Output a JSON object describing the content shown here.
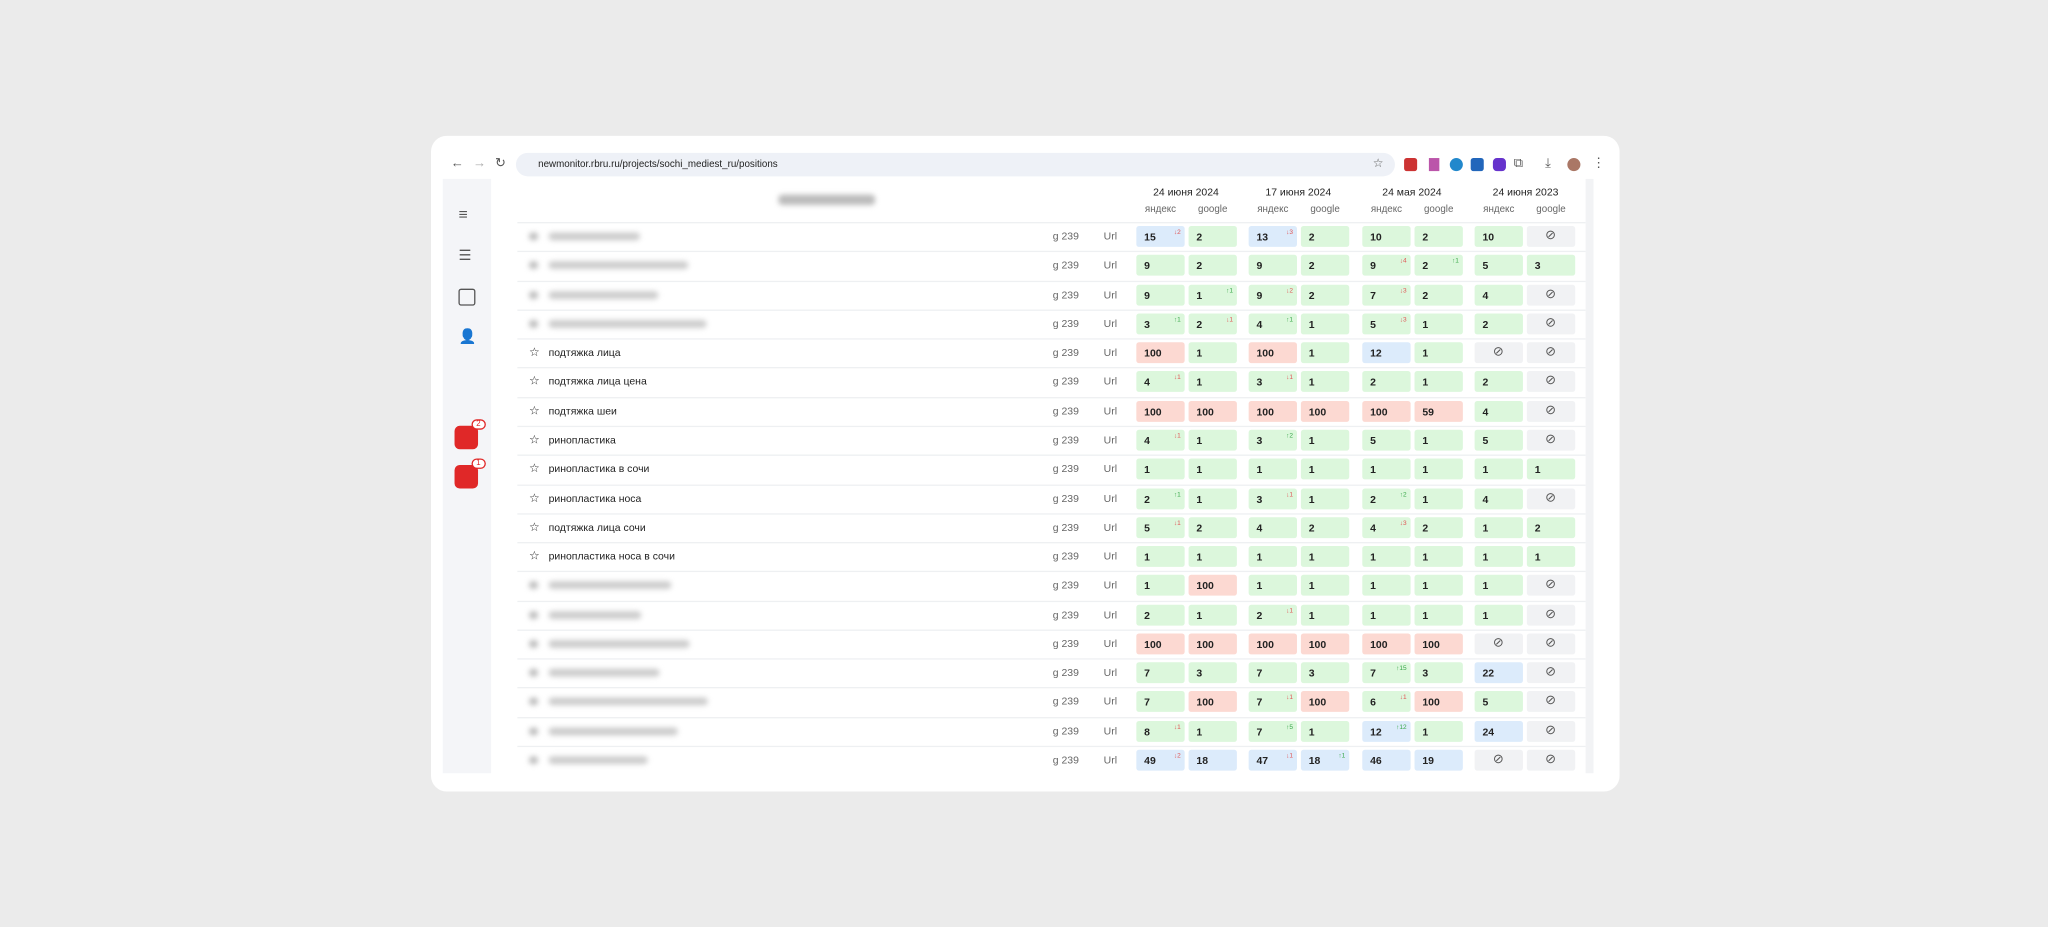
{
  "browser": {
    "url": "newmonitor.rbru.ru/projects/sochi_mediest_ru/positions"
  },
  "sidebar": {
    "badges": [
      "2",
      "1"
    ]
  },
  "table": {
    "dates": [
      "24 июня 2024",
      "17 июня 2024",
      "24 мая 2024",
      "24 июня 2023"
    ],
    "engines": [
      "яндекс",
      "google"
    ],
    "rows": [
      {
        "keyword": null,
        "region": "g 239",
        "url": "Url",
        "cells": [
          {
            "value": "15",
            "delta": "↓2",
            "status": "blue"
          },
          {
            "value": "2",
            "status": "green"
          },
          {
            "value": "13",
            "delta": "↓3",
            "status": "blue"
          },
          {
            "value": "2",
            "status": "green"
          },
          {
            "value": "10",
            "status": "green"
          },
          {
            "value": "2",
            "status": "green"
          },
          {
            "value": "10",
            "status": "green"
          },
          {
            "value": null,
            "status": "empty"
          }
        ]
      },
      {
        "keyword": null,
        "region": "g 239",
        "url": "Url",
        "cells": [
          {
            "value": "9",
            "status": "green"
          },
          {
            "value": "2",
            "status": "green"
          },
          {
            "value": "9",
            "status": "green"
          },
          {
            "value": "2",
            "status": "green"
          },
          {
            "value": "9",
            "delta": "↓4",
            "status": "green"
          },
          {
            "value": "2",
            "delta": "↑1",
            "status": "green"
          },
          {
            "value": "5",
            "status": "green"
          },
          {
            "value": "3",
            "status": "green"
          }
        ]
      },
      {
        "keyword": null,
        "region": "g 239",
        "url": "Url",
        "cells": [
          {
            "value": "9",
            "status": "green"
          },
          {
            "value": "1",
            "delta": "↑1",
            "status": "green"
          },
          {
            "value": "9",
            "delta": "↓2",
            "status": "green"
          },
          {
            "value": "2",
            "status": "green"
          },
          {
            "value": "7",
            "delta": "↓3",
            "status": "green"
          },
          {
            "value": "2",
            "status": "green"
          },
          {
            "value": "4",
            "status": "green"
          },
          {
            "value": null,
            "status": "empty"
          }
        ]
      },
      {
        "keyword": null,
        "region": "g 239",
        "url": "Url",
        "cells": [
          {
            "value": "3",
            "delta": "↑1",
            "status": "green"
          },
          {
            "value": "2",
            "delta": "↓1",
            "status": "green"
          },
          {
            "value": "4",
            "delta": "↑1",
            "status": "green"
          },
          {
            "value": "1",
            "status": "green"
          },
          {
            "value": "5",
            "delta": "↓3",
            "status": "green"
          },
          {
            "value": "1",
            "status": "green"
          },
          {
            "value": "2",
            "status": "green"
          },
          {
            "value": null,
            "status": "empty"
          }
        ]
      },
      {
        "keyword": "подтяжка лица",
        "region": "g 239",
        "url": "Url",
        "cells": [
          {
            "value": "100",
            "status": "red"
          },
          {
            "value": "1",
            "status": "green"
          },
          {
            "value": "100",
            "status": "red"
          },
          {
            "value": "1",
            "status": "green"
          },
          {
            "value": "12",
            "status": "blue"
          },
          {
            "value": "1",
            "status": "green"
          },
          {
            "value": null,
            "status": "empty"
          },
          {
            "value": null,
            "status": "empty"
          }
        ]
      },
      {
        "keyword": "подтяжка лица цена",
        "region": "g 239",
        "url": "Url",
        "cells": [
          {
            "value": "4",
            "delta": "↓1",
            "status": "green"
          },
          {
            "value": "1",
            "status": "green"
          },
          {
            "value": "3",
            "delta": "↓1",
            "status": "green"
          },
          {
            "value": "1",
            "status": "green"
          },
          {
            "value": "2",
            "status": "green"
          },
          {
            "value": "1",
            "status": "green"
          },
          {
            "value": "2",
            "status": "green"
          },
          {
            "value": null,
            "status": "empty"
          }
        ]
      },
      {
        "keyword": "подтяжка шеи",
        "region": "g 239",
        "url": "Url",
        "cells": [
          {
            "value": "100",
            "status": "red"
          },
          {
            "value": "100",
            "status": "red"
          },
          {
            "value": "100",
            "status": "red"
          },
          {
            "value": "100",
            "status": "red"
          },
          {
            "value": "100",
            "status": "red"
          },
          {
            "value": "59",
            "status": "red"
          },
          {
            "value": "4",
            "status": "green"
          },
          {
            "value": null,
            "status": "empty"
          }
        ]
      },
      {
        "keyword": "ринопластика",
        "region": "g 239",
        "url": "Url",
        "cells": [
          {
            "value": "4",
            "delta": "↓1",
            "status": "green"
          },
          {
            "value": "1",
            "status": "green"
          },
          {
            "value": "3",
            "delta": "↑2",
            "status": "green"
          },
          {
            "value": "1",
            "status": "green"
          },
          {
            "value": "5",
            "status": "green"
          },
          {
            "value": "1",
            "status": "green"
          },
          {
            "value": "5",
            "status": "green"
          },
          {
            "value": null,
            "status": "empty"
          }
        ]
      },
      {
        "keyword": "ринопластика в сочи",
        "region": "g 239",
        "url": "Url",
        "cells": [
          {
            "value": "1",
            "status": "green"
          },
          {
            "value": "1",
            "status": "green"
          },
          {
            "value": "1",
            "status": "green"
          },
          {
            "value": "1",
            "status": "green"
          },
          {
            "value": "1",
            "status": "green"
          },
          {
            "value": "1",
            "status": "green"
          },
          {
            "value": "1",
            "status": "green"
          },
          {
            "value": "1",
            "status": "green"
          }
        ]
      },
      {
        "keyword": "ринопластика носа",
        "region": "g 239",
        "url": "Url",
        "cells": [
          {
            "value": "2",
            "delta": "↑1",
            "status": "green"
          },
          {
            "value": "1",
            "status": "green"
          },
          {
            "value": "3",
            "delta": "↓1",
            "status": "green"
          },
          {
            "value": "1",
            "status": "green"
          },
          {
            "value": "2",
            "delta": "↑2",
            "status": "green"
          },
          {
            "value": "1",
            "status": "green"
          },
          {
            "value": "4",
            "status": "green"
          },
          {
            "value": null,
            "status": "empty"
          }
        ]
      },
      {
        "keyword": "подтяжка лица сочи",
        "region": "g 239",
        "url": "Url",
        "cells": [
          {
            "value": "5",
            "delta": "↓1",
            "status": "green"
          },
          {
            "value": "2",
            "status": "green"
          },
          {
            "value": "4",
            "status": "green"
          },
          {
            "value": "2",
            "status": "green"
          },
          {
            "value": "4",
            "delta": "↓3",
            "status": "green"
          },
          {
            "value": "2",
            "status": "green"
          },
          {
            "value": "1",
            "status": "green"
          },
          {
            "value": "2",
            "status": "green"
          }
        ]
      },
      {
        "keyword": "ринопластика носа в сочи",
        "region": "g 239",
        "url": "Url",
        "cells": [
          {
            "value": "1",
            "status": "green"
          },
          {
            "value": "1",
            "status": "green"
          },
          {
            "value": "1",
            "status": "green"
          },
          {
            "value": "1",
            "status": "green"
          },
          {
            "value": "1",
            "status": "green"
          },
          {
            "value": "1",
            "status": "green"
          },
          {
            "value": "1",
            "status": "green"
          },
          {
            "value": "1",
            "status": "green"
          }
        ]
      },
      {
        "keyword": null,
        "region": "g 239",
        "url": "Url",
        "cells": [
          {
            "value": "1",
            "status": "green"
          },
          {
            "value": "100",
            "status": "red"
          },
          {
            "value": "1",
            "status": "green"
          },
          {
            "value": "1",
            "status": "green"
          },
          {
            "value": "1",
            "status": "green"
          },
          {
            "value": "1",
            "status": "green"
          },
          {
            "value": "1",
            "status": "green"
          },
          {
            "value": null,
            "status": "empty"
          }
        ]
      },
      {
        "keyword": null,
        "region": "g 239",
        "url": "Url",
        "cells": [
          {
            "value": "2",
            "status": "green"
          },
          {
            "value": "1",
            "status": "green"
          },
          {
            "value": "2",
            "delta": "↓1",
            "status": "green"
          },
          {
            "value": "1",
            "status": "green"
          },
          {
            "value": "1",
            "status": "green"
          },
          {
            "value": "1",
            "status": "green"
          },
          {
            "value": "1",
            "status": "green"
          },
          {
            "value": null,
            "status": "empty"
          }
        ]
      },
      {
        "keyword": null,
        "region": "g 239",
        "url": "Url",
        "cells": [
          {
            "value": "100",
            "status": "red"
          },
          {
            "value": "100",
            "status": "red"
          },
          {
            "value": "100",
            "status": "red"
          },
          {
            "value": "100",
            "status": "red"
          },
          {
            "value": "100",
            "status": "red"
          },
          {
            "value": "100",
            "status": "red"
          },
          {
            "value": null,
            "status": "empty"
          },
          {
            "value": null,
            "status": "empty"
          }
        ]
      },
      {
        "keyword": null,
        "region": "g 239",
        "url": "Url",
        "cells": [
          {
            "value": "7",
            "status": "green"
          },
          {
            "value": "3",
            "status": "green"
          },
          {
            "value": "7",
            "status": "green"
          },
          {
            "value": "3",
            "status": "green"
          },
          {
            "value": "7",
            "delta": "↑15",
            "status": "green"
          },
          {
            "value": "3",
            "status": "green"
          },
          {
            "value": "22",
            "status": "blue"
          },
          {
            "value": null,
            "status": "empty"
          }
        ]
      },
      {
        "keyword": null,
        "region": "g 239",
        "url": "Url",
        "cells": [
          {
            "value": "7",
            "status": "green"
          },
          {
            "value": "100",
            "status": "red"
          },
          {
            "value": "7",
            "delta": "↓1",
            "status": "green"
          },
          {
            "value": "100",
            "status": "red"
          },
          {
            "value": "6",
            "delta": "↓1",
            "status": "green"
          },
          {
            "value": "100",
            "status": "red"
          },
          {
            "value": "5",
            "status": "green"
          },
          {
            "value": null,
            "status": "empty"
          }
        ]
      },
      {
        "keyword": null,
        "region": "g 239",
        "url": "Url",
        "cells": [
          {
            "value": "8",
            "delta": "↓1",
            "status": "green"
          },
          {
            "value": "1",
            "status": "green"
          },
          {
            "value": "7",
            "delta": "↑5",
            "status": "green"
          },
          {
            "value": "1",
            "status": "green"
          },
          {
            "value": "12",
            "delta": "↑12",
            "status": "blue"
          },
          {
            "value": "1",
            "status": "green"
          },
          {
            "value": "24",
            "status": "blue"
          },
          {
            "value": null,
            "status": "empty"
          }
        ]
      },
      {
        "keyword": null,
        "region": "g 239",
        "url": "Url",
        "cells": [
          {
            "value": "49",
            "delta": "↓2",
            "status": "blue"
          },
          {
            "value": "18",
            "status": "blue"
          },
          {
            "value": "47",
            "delta": "↓1",
            "status": "blue"
          },
          {
            "value": "18",
            "delta": "↑1",
            "status": "blue"
          },
          {
            "value": "46",
            "status": "blue"
          },
          {
            "value": "19",
            "status": "blue"
          },
          {
            "value": null,
            "status": "empty"
          },
          {
            "value": null,
            "status": "empty"
          }
        ]
      }
    ]
  }
}
